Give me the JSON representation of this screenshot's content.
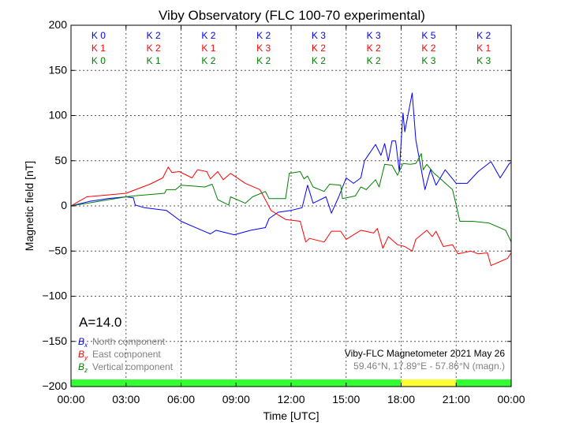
{
  "chart_data": {
    "type": "line",
    "title": "Viby Observatory (FLC 100-70 experimental)",
    "xlabel": "Time [UTC]",
    "ylabel": "Magnetic field [nT]",
    "xlim": [
      0,
      24
    ],
    "ylim": [
      -200,
      200
    ],
    "grid": true,
    "x_ticks": [
      0,
      3,
      6,
      9,
      12,
      15,
      18,
      21,
      24
    ],
    "x_tick_labels": [
      "00:00",
      "03:00",
      "06:00",
      "09:00",
      "12:00",
      "15:00",
      "18:00",
      "21:00",
      "00:00"
    ],
    "y_ticks": [
      200,
      150,
      100,
      50,
      0,
      -50,
      -100,
      -150,
      -200
    ],
    "y_tick_labels": [
      "200",
      "150",
      "100",
      "50",
      "0",
      "−50",
      "−100",
      "−150",
      "−200"
    ],
    "series": [
      {
        "name": "Bx",
        "sub": "x",
        "label": "North component",
        "color": "#0000ff",
        "points": [
          [
            0,
            0
          ],
          [
            1,
            5
          ],
          [
            2,
            8
          ],
          [
            3,
            10
          ],
          [
            3.4,
            9
          ],
          [
            3.5,
            1
          ],
          [
            4,
            -2
          ],
          [
            5.2,
            -5
          ],
          [
            6,
            -17
          ],
          [
            6.9,
            -25
          ],
          [
            7.6,
            -31
          ],
          [
            7.9,
            -27
          ],
          [
            8.9,
            -32
          ],
          [
            9.8,
            -27
          ],
          [
            10.6,
            -24
          ],
          [
            10.8,
            -14
          ],
          [
            11.3,
            -7
          ],
          [
            12,
            -5
          ],
          [
            12.6,
            -2
          ],
          [
            12.9,
            23
          ],
          [
            13.2,
            3
          ],
          [
            13.9,
            10
          ],
          [
            14.2,
            -8
          ],
          [
            14.6,
            10
          ],
          [
            15,
            31
          ],
          [
            15.4,
            25
          ],
          [
            15.8,
            31
          ],
          [
            16,
            50
          ],
          [
            16.6,
            68
          ],
          [
            16.9,
            56
          ],
          [
            17.1,
            69
          ],
          [
            17.3,
            50
          ],
          [
            17.5,
            72
          ],
          [
            17.7,
            72
          ],
          [
            17.9,
            38
          ],
          [
            18.1,
            103
          ],
          [
            18.2,
            82
          ],
          [
            18.6,
            125
          ],
          [
            18.8,
            73
          ],
          [
            19.3,
            18
          ],
          [
            19.6,
            40
          ],
          [
            19.9,
            23
          ],
          [
            20.4,
            40
          ],
          [
            21,
            25
          ],
          [
            21.6,
            25
          ],
          [
            22.2,
            38
          ],
          [
            22.9,
            49
          ],
          [
            23.4,
            31
          ],
          [
            23.9,
            47
          ],
          [
            24,
            48
          ]
        ]
      },
      {
        "name": "By",
        "sub": "y",
        "label": "East component",
        "color": "#ff0000",
        "points": [
          [
            0,
            0
          ],
          [
            0.86,
            10
          ],
          [
            3,
            14
          ],
          [
            4.3,
            24
          ],
          [
            5,
            31
          ],
          [
            5.3,
            43
          ],
          [
            5.5,
            37
          ],
          [
            5.9,
            38
          ],
          [
            6.6,
            31
          ],
          [
            6.9,
            40
          ],
          [
            7.4,
            38
          ],
          [
            7.6,
            30
          ],
          [
            8,
            38
          ],
          [
            8.3,
            29
          ],
          [
            8.7,
            36
          ],
          [
            9.5,
            25
          ],
          [
            10.3,
            18
          ],
          [
            10.7,
            3
          ],
          [
            10.9,
            -5
          ],
          [
            11.7,
            -15
          ],
          [
            12.5,
            -17
          ],
          [
            12.8,
            -40
          ],
          [
            13,
            -36
          ],
          [
            13.8,
            -40
          ],
          [
            14.2,
            -28
          ],
          [
            14.7,
            -28
          ],
          [
            15,
            -37
          ],
          [
            15.8,
            -27
          ],
          [
            16.5,
            -30
          ],
          [
            16.7,
            -25
          ],
          [
            17,
            -47
          ],
          [
            17.3,
            -34
          ],
          [
            17.8,
            -43
          ],
          [
            18.2,
            -45
          ],
          [
            18.6,
            -50
          ],
          [
            18.8,
            -37
          ],
          [
            19.4,
            -27
          ],
          [
            19.7,
            -34
          ],
          [
            19.9,
            -28
          ],
          [
            20.3,
            -45
          ],
          [
            20.8,
            -43
          ],
          [
            21.1,
            -53
          ],
          [
            21.8,
            -50
          ],
          [
            22.2,
            -53
          ],
          [
            22.7,
            -52
          ],
          [
            22.9,
            -66
          ],
          [
            23.8,
            -58
          ],
          [
            24,
            -52
          ]
        ]
      },
      {
        "name": "Bz",
        "sub": "z",
        "label": "Vertical component",
        "color": "#008000",
        "points": [
          [
            0,
            0
          ],
          [
            3,
            10
          ],
          [
            3.4,
            11
          ],
          [
            5.1,
            14
          ],
          [
            5.2,
            18
          ],
          [
            5.7,
            18
          ],
          [
            6,
            23
          ],
          [
            7.3,
            21
          ],
          [
            7.7,
            24
          ],
          [
            8,
            7
          ],
          [
            8.6,
            1
          ],
          [
            8.7,
            10
          ],
          [
            9.5,
            3
          ],
          [
            9.9,
            10
          ],
          [
            10.6,
            16
          ],
          [
            10.8,
            8
          ],
          [
            11.7,
            8
          ],
          [
            11.9,
            36
          ],
          [
            12.5,
            38
          ],
          [
            12.7,
            30
          ],
          [
            12.9,
            33
          ],
          [
            13.2,
            21
          ],
          [
            13.8,
            16
          ],
          [
            14.1,
            24
          ],
          [
            14.7,
            23
          ],
          [
            14.8,
            8
          ],
          [
            15.5,
            11
          ],
          [
            15.8,
            21
          ],
          [
            16.1,
            18
          ],
          [
            16.6,
            29
          ],
          [
            16.8,
            21
          ],
          [
            17.1,
            46
          ],
          [
            17.5,
            45
          ],
          [
            17.8,
            34
          ],
          [
            18.1,
            47
          ],
          [
            18.5,
            46
          ],
          [
            18.8,
            47
          ],
          [
            19.1,
            58
          ],
          [
            19.2,
            40
          ],
          [
            19.4,
            46
          ],
          [
            19.8,
            36
          ],
          [
            20.2,
            29
          ],
          [
            20.8,
            18
          ],
          [
            21,
            1
          ],
          [
            21.2,
            -17
          ],
          [
            21.9,
            -17
          ],
          [
            22.8,
            -19
          ],
          [
            23.7,
            -27
          ],
          [
            24,
            -40
          ]
        ]
      }
    ],
    "k_indices": {
      "blue": [
        "K 0",
        "K 2",
        "K 2",
        "K 2",
        "K 3",
        "K 3",
        "K 5",
        "K 2"
      ],
      "red": [
        "K 1",
        "K 2",
        "K 1",
        "K 3",
        "K 2",
        "K 2",
        "K 2",
        "K 1"
      ],
      "green": [
        "K 0",
        "K 1",
        "K 2",
        "K 2",
        "K 2",
        "K 2",
        "K 3",
        "K 3"
      ]
    },
    "activity_bar": [
      {
        "from": 0,
        "to": 18,
        "color": "#33ff33"
      },
      {
        "from": 18,
        "to": 21,
        "color": "#ffff33"
      },
      {
        "from": 21,
        "to": 24,
        "color": "#33ff33"
      }
    ],
    "a_index": "A=14.0",
    "legend_symbol": "B",
    "station_label": "Viby-FLC Magnetometer 2021 May 26",
    "station_coords": "59.46°N, 17.89°E - 57.86°N (magn.)"
  }
}
